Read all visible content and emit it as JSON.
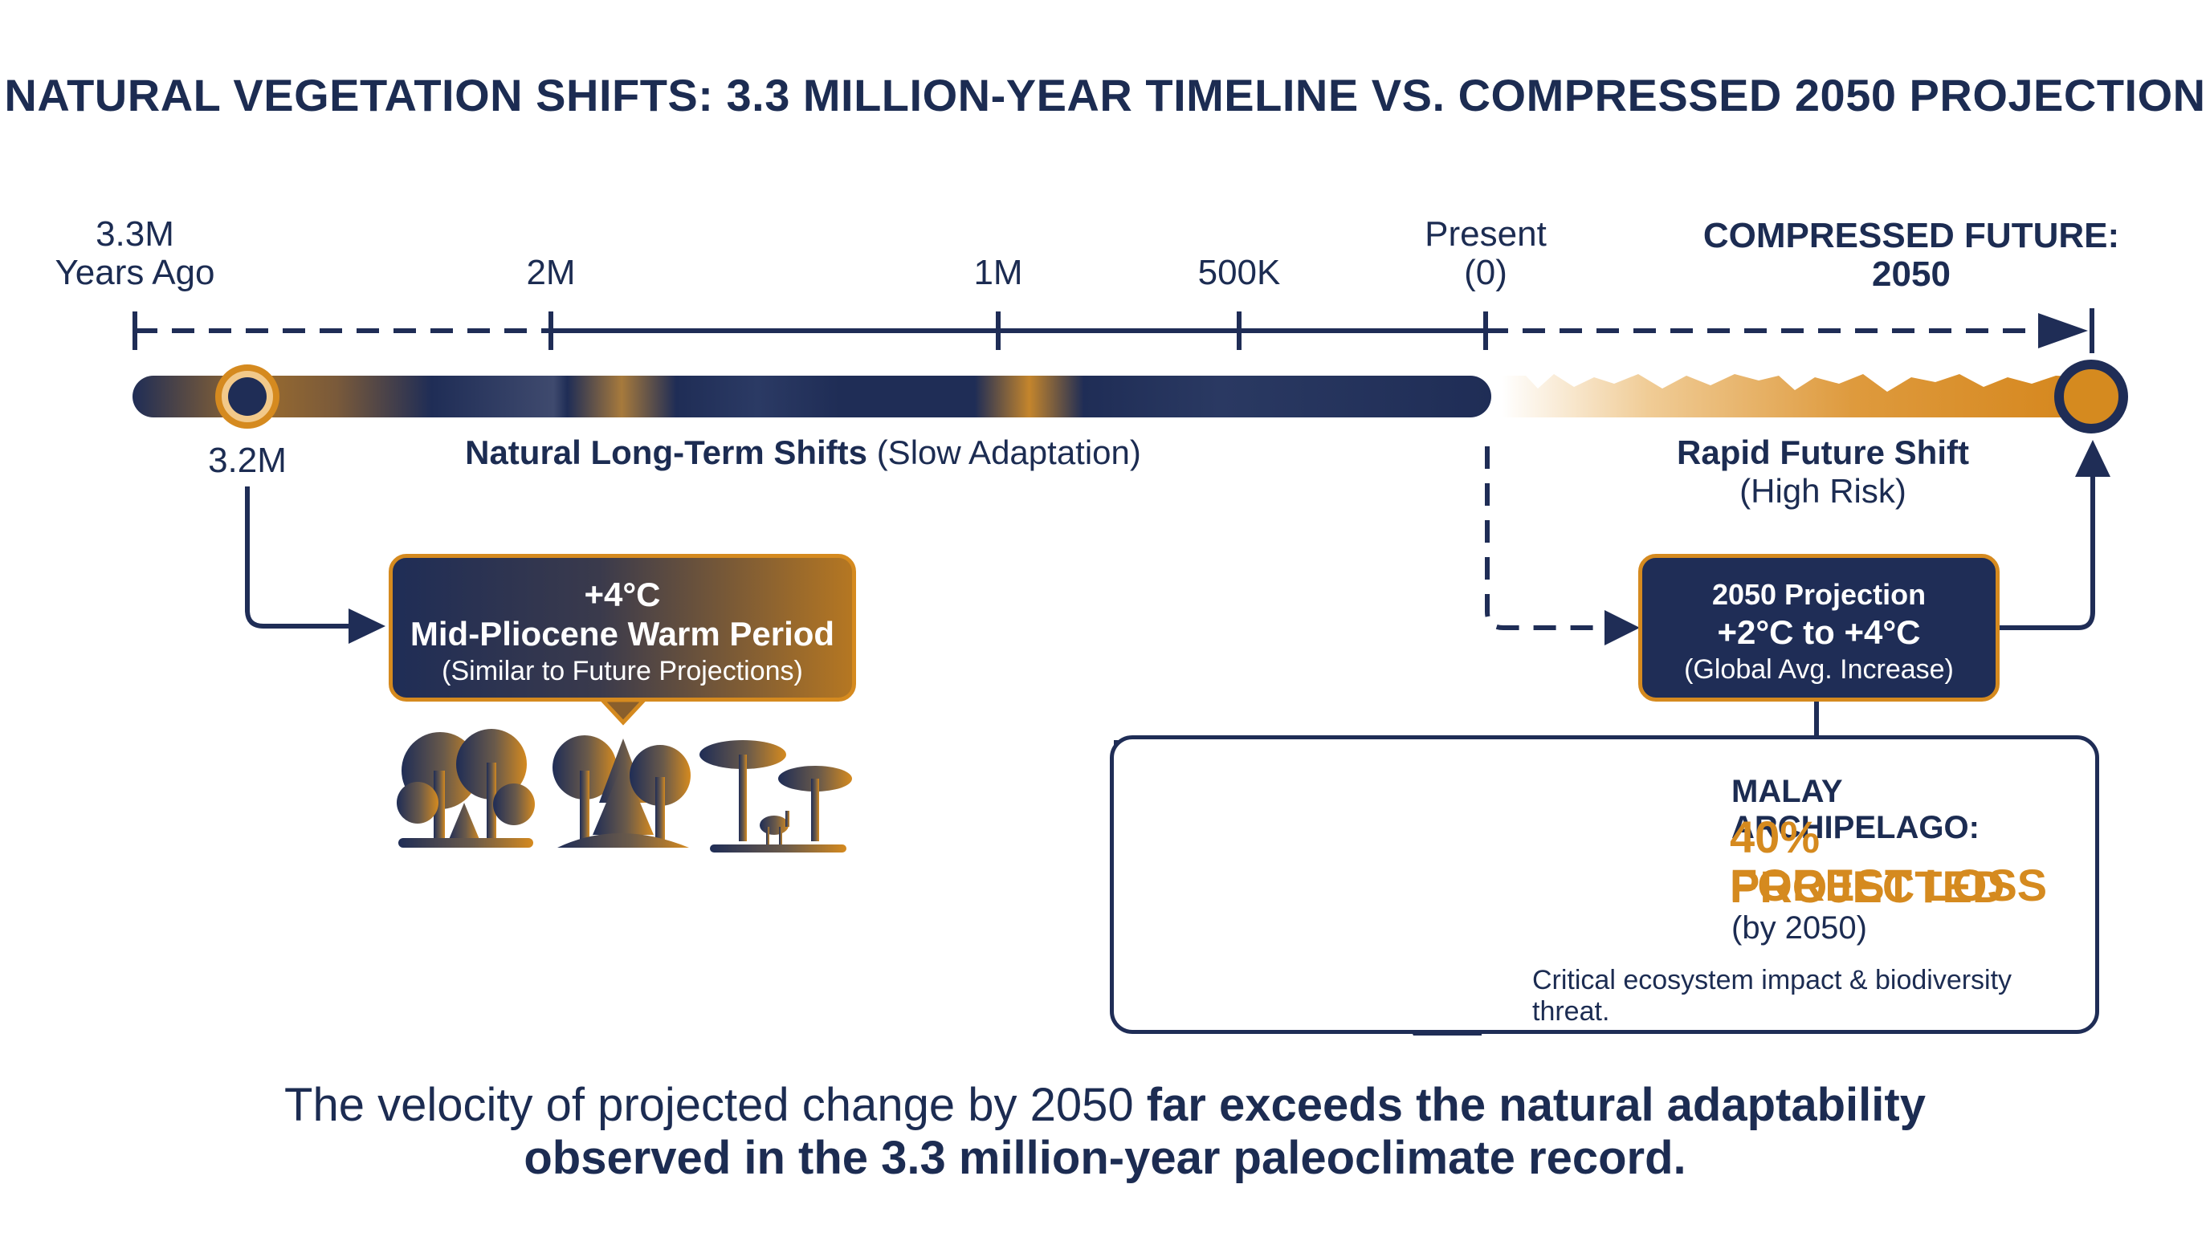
{
  "title": "NATURAL VEGETATION SHIFTS: 3.3 MILLION-YEAR TIMELINE VS. COMPRESSED 2050 PROJECTION",
  "timeline": {
    "start_label_line1": "3.3M",
    "start_label_line2": "Years Ago",
    "tick_2m": "2M",
    "tick_1m": "1M",
    "tick_500k": "500K",
    "present_line1": "Present",
    "present_line2": "(0)",
    "future_header": "COMPRESSED FUTURE: 2050",
    "marker_label": "3.2M",
    "natural_label_bold": "Natural Long-Term Shifts",
    "natural_label_rest": "(Slow Adaptation)",
    "rapid_label_bold": "Rapid Future Shift",
    "rapid_label_rest": "(High Risk)"
  },
  "pliocene_box": {
    "temp": "+4°C",
    "name": "Mid-Pliocene Warm Period",
    "note": "(Similar to Future Projections)"
  },
  "projection_box": {
    "title": "2050 Projection",
    "range": "+2°C to +4°C",
    "note": "(Global Avg. Increase)"
  },
  "malay_panel": {
    "region": "MALAY ARCHIPELAGO:",
    "stat_line1": "40% PROJECTED",
    "stat_line2": "FOREST LOSS",
    "by": "(by 2050)",
    "impact": "Critical ecosystem impact & biodiversity threat."
  },
  "footer": {
    "line1_regular": "The velocity of projected change by 2050",
    "line1_bold": "far exceeds the natural adaptability",
    "line2_bold": "observed in the 3.3 million-year paleoclimate record."
  },
  "colors": {
    "navy": "#1f2d56",
    "orange": "#d58a1f",
    "text": "#1c2c52"
  },
  "icons": [
    "forest-icon",
    "mixed-forest-icon",
    "savanna-deer-icon",
    "dead-forest-icon",
    "arrow-right-icon"
  ]
}
